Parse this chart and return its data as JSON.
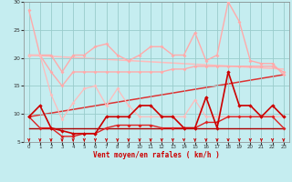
{
  "xlabel": "Vent moyen/en rafales ( km/h )",
  "xlim": [
    -0.5,
    23.5
  ],
  "ylim": [
    5,
    30
  ],
  "yticks": [
    5,
    10,
    15,
    20,
    25,
    30
  ],
  "xticks": [
    0,
    1,
    2,
    3,
    4,
    5,
    6,
    7,
    8,
    9,
    10,
    11,
    12,
    13,
    14,
    15,
    16,
    17,
    18,
    19,
    20,
    21,
    22,
    23
  ],
  "bg_color": "#c5edf0",
  "grid_color": "#99cccc",
  "line_top1": {
    "x": [
      0,
      1,
      2,
      3,
      4,
      5,
      6,
      7,
      8,
      9,
      10,
      11,
      12,
      13,
      14,
      15,
      16,
      17,
      18,
      19,
      20,
      21,
      22,
      23
    ],
    "y": [
      28.5,
      20.5,
      20.5,
      17.5,
      20.5,
      20.5,
      22.0,
      22.5,
      20.5,
      19.5,
      20.5,
      22.0,
      22.0,
      20.5,
      20.5,
      24.5,
      19.5,
      20.5,
      30.0,
      26.5,
      19.5,
      19.0,
      19.0,
      17.0
    ],
    "color": "#ffaaaa",
    "lw": 1.0,
    "marker": "D",
    "ms": 2.0
  },
  "line_top2": {
    "x": [
      0,
      1,
      2,
      3,
      4,
      5,
      6,
      7,
      8,
      9,
      10,
      11,
      12,
      13,
      14,
      15,
      16,
      17,
      18,
      19,
      20,
      21,
      22,
      23
    ],
    "y": [
      20.5,
      20.5,
      17.5,
      15.0,
      17.5,
      17.5,
      17.5,
      17.5,
      17.5,
      17.5,
      17.5,
      17.5,
      17.5,
      18.0,
      18.0,
      18.5,
      18.5,
      18.5,
      18.5,
      18.5,
      18.5,
      18.5,
      18.5,
      17.5
    ],
    "color": "#ffaaaa",
    "lw": 1.0,
    "marker": "D",
    "ms": 2.0
  },
  "line_mid": {
    "x": [
      0,
      1,
      2,
      3,
      4,
      5,
      6,
      7,
      8,
      9,
      10,
      11,
      12,
      13,
      14,
      15,
      16,
      17,
      18,
      19,
      20,
      21,
      22,
      23
    ],
    "y": [
      20.5,
      20.5,
      13.5,
      9.0,
      12.0,
      14.5,
      15.0,
      11.5,
      14.5,
      11.5,
      9.5,
      9.5,
      9.5,
      9.5,
      9.5,
      12.5,
      9.5,
      9.5,
      9.5,
      9.5,
      9.5,
      9.5,
      9.5,
      9.5
    ],
    "color": "#ffbbbb",
    "lw": 0.9,
    "marker": "D",
    "ms": 2.0
  },
  "trend_upper": {
    "x": [
      0,
      23
    ],
    "y": [
      20.5,
      18.0
    ],
    "color": "#ffbbbb",
    "lw": 1.1
  },
  "trend_lower": {
    "x": [
      0,
      23
    ],
    "y": [
      9.5,
      17.0
    ],
    "color": "#dd3333",
    "lw": 1.1
  },
  "line_dark1": {
    "x": [
      0,
      1,
      2,
      3,
      4,
      5,
      6,
      7,
      8,
      9,
      10,
      11,
      12,
      13,
      14,
      15,
      16,
      17,
      18,
      19,
      20,
      21,
      22,
      23
    ],
    "y": [
      9.5,
      11.5,
      7.5,
      7.0,
      6.5,
      6.5,
      6.5,
      9.5,
      9.5,
      9.5,
      11.5,
      11.5,
      9.5,
      9.5,
      7.5,
      7.5,
      13.0,
      7.5,
      17.5,
      11.5,
      11.5,
      9.5,
      11.5,
      9.5
    ],
    "color": "#cc0000",
    "lw": 1.2,
    "marker": "D",
    "ms": 2.2
  },
  "line_dark2": {
    "x": [
      0,
      1,
      2,
      3,
      4,
      5,
      6,
      7,
      8,
      9,
      10,
      11,
      12,
      13,
      14,
      15,
      16,
      17,
      18,
      19,
      20,
      21,
      22,
      23
    ],
    "y": [
      9.5,
      7.5,
      7.5,
      6.0,
      6.0,
      6.5,
      6.5,
      7.5,
      8.0,
      8.0,
      8.0,
      8.0,
      7.5,
      7.5,
      7.5,
      7.5,
      8.5,
      8.5,
      9.5,
      9.5,
      9.5,
      9.5,
      9.5,
      7.5
    ],
    "color": "#dd2222",
    "lw": 1.0,
    "marker": "D",
    "ms": 2.0
  },
  "line_flat": {
    "x": [
      0,
      23
    ],
    "y": [
      7.5,
      7.5
    ],
    "color": "#aa0000",
    "lw": 1.0,
    "marker": null,
    "ms": 0
  },
  "arrows": {
    "x": [
      0,
      1,
      2,
      3,
      4,
      5,
      6,
      7,
      8,
      9,
      10,
      11,
      12,
      13,
      14,
      15,
      16,
      17,
      18,
      19,
      20,
      21,
      22,
      23
    ],
    "color": "#cc0000"
  }
}
